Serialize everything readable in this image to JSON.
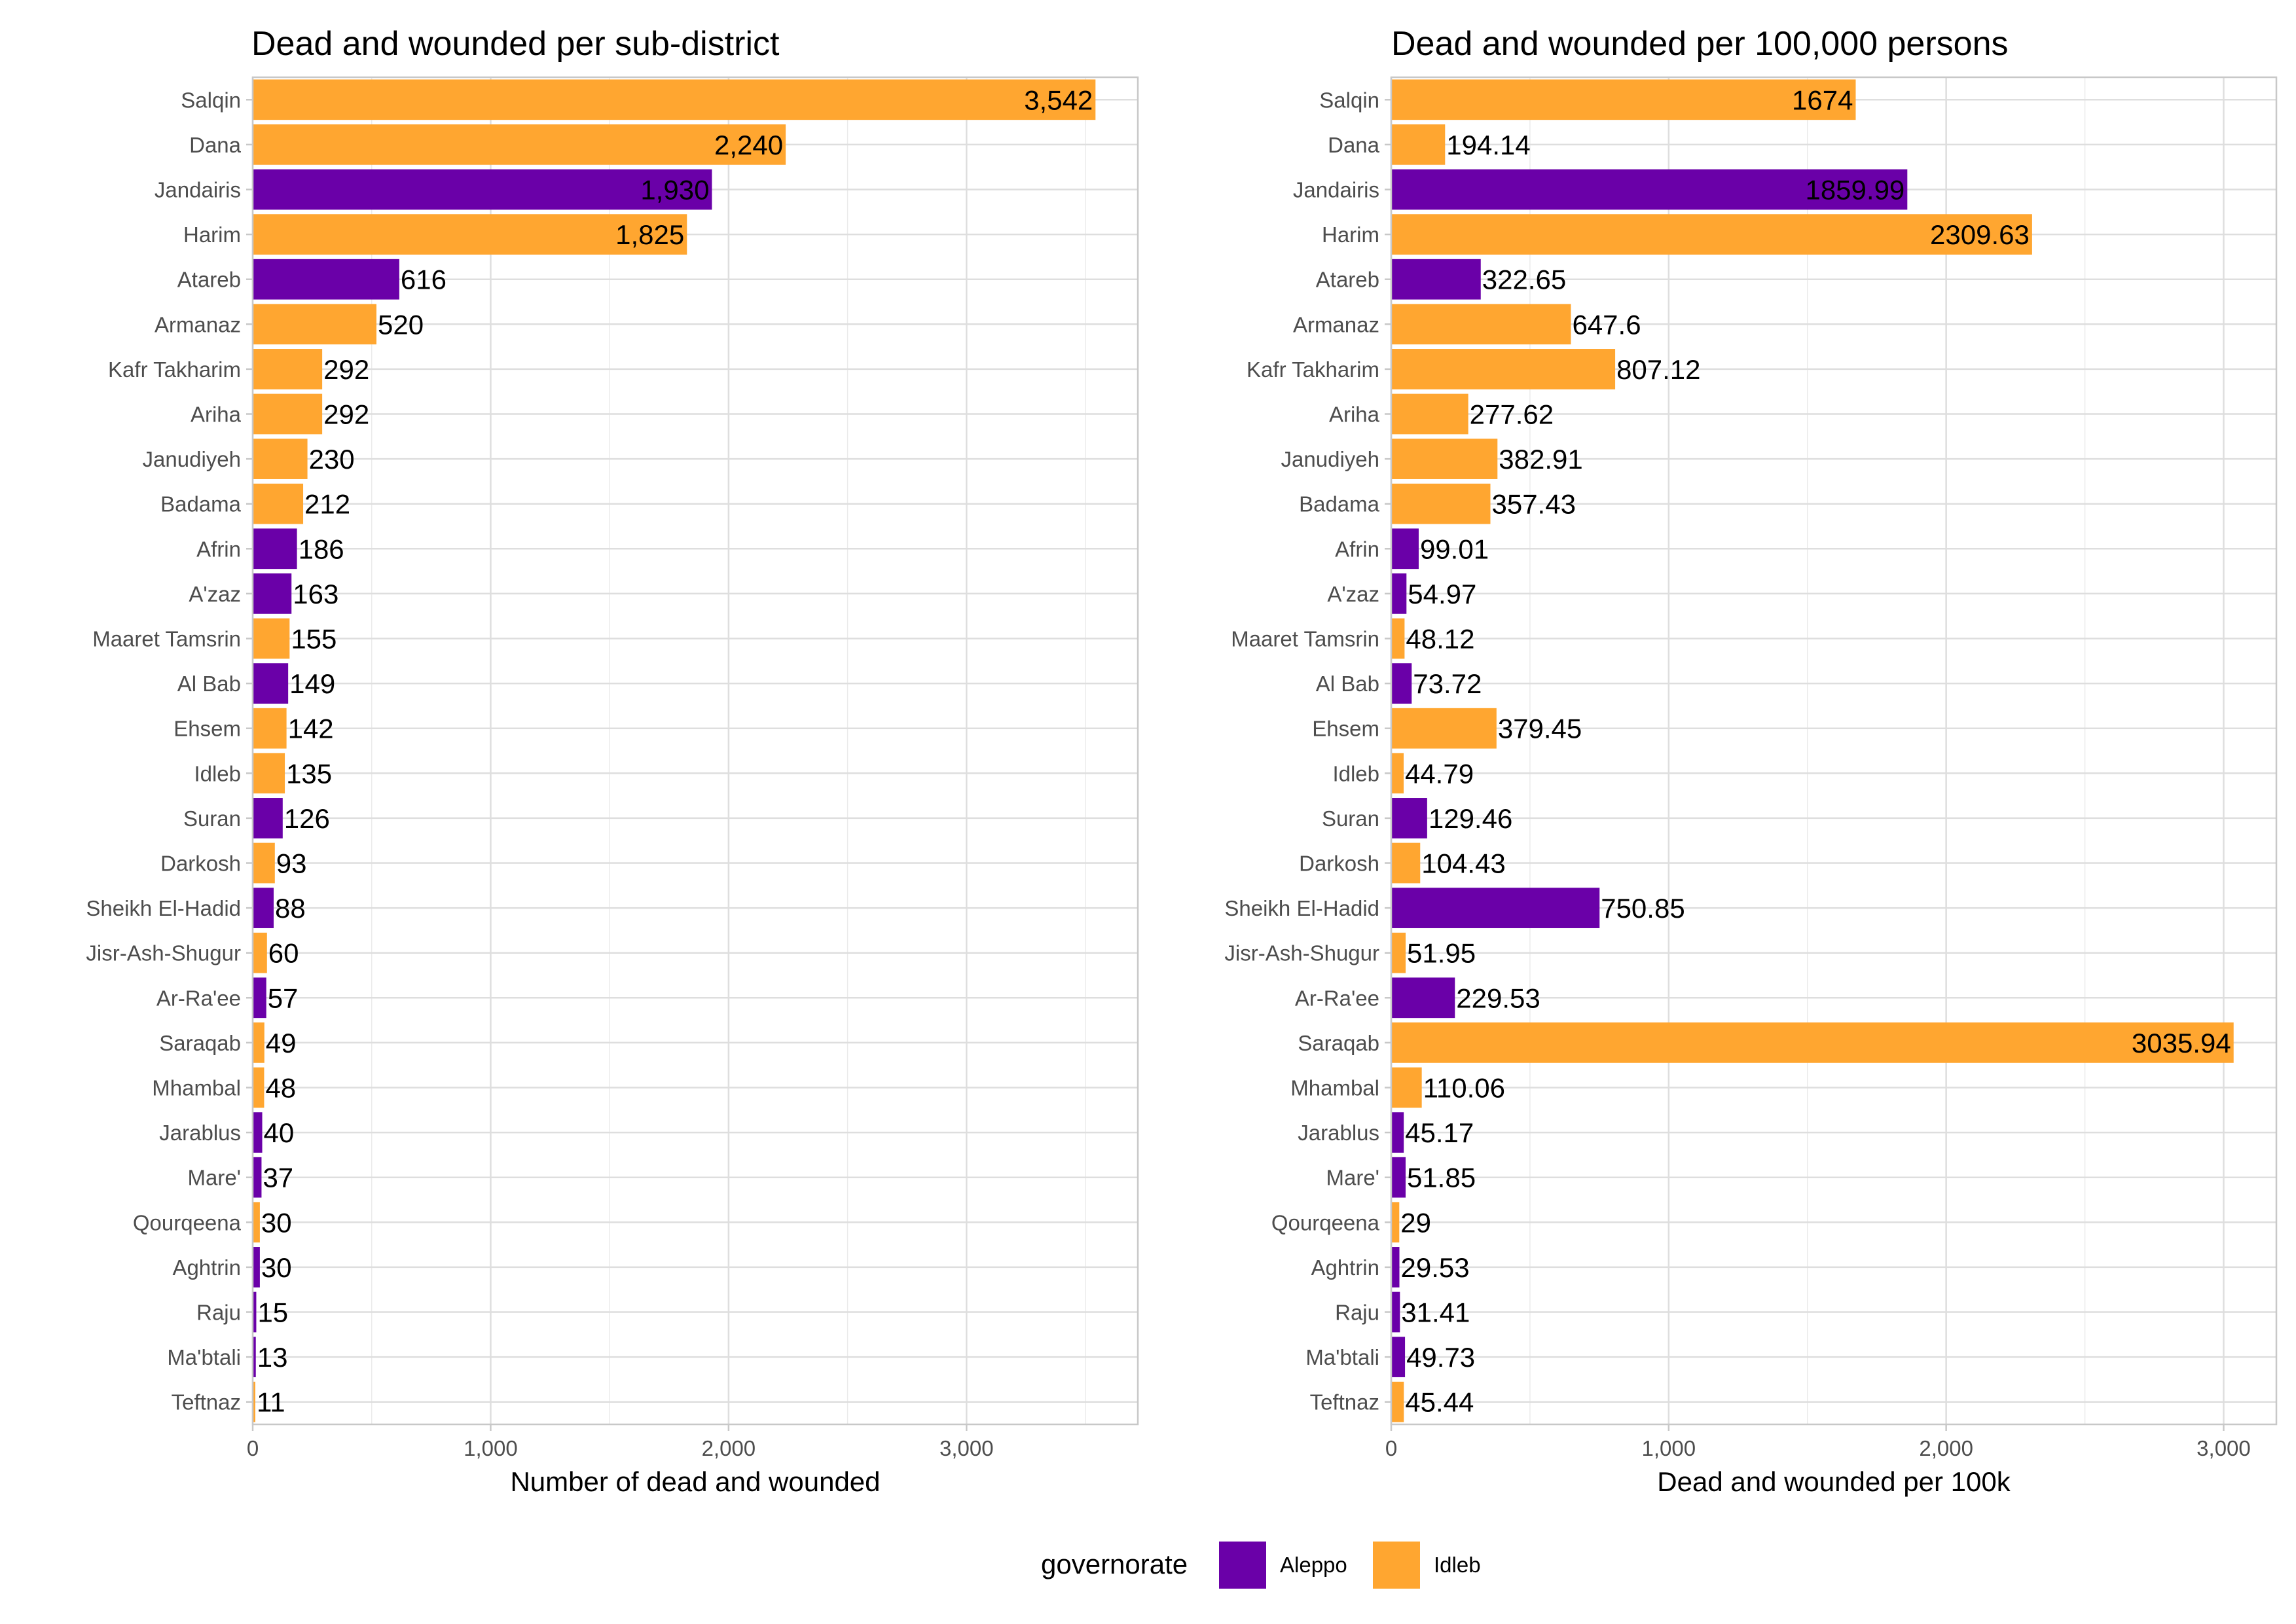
{
  "colors": {
    "Aleppo": "#6a00a8",
    "Idleb": "#ffa630"
  },
  "legend": {
    "title": "governorate",
    "items": [
      {
        "name": "Aleppo",
        "color": "#6a00a8"
      },
      {
        "name": "Idleb",
        "color": "#ffa630"
      }
    ]
  },
  "chart_data": [
    {
      "type": "bar",
      "orientation": "horizontal",
      "title": "Dead and wounded per sub-district",
      "xlabel": "Number of dead and wounded",
      "ylabel": "",
      "xlim": [
        0,
        3720
      ],
      "x_ticks": [
        0,
        1000,
        2000,
        3000
      ],
      "x_tick_labels": [
        "0",
        "1,000",
        "2,000",
        "3,000"
      ],
      "grid": true,
      "categories": [
        "Salqin",
        "Dana",
        "Jandairis",
        "Harim",
        "Atareb",
        "Armanaz",
        "Kafr Takharim",
        "Ariha",
        "Janudiyeh",
        "Badama",
        "Afrin",
        "A'zaz",
        "Maaret Tamsrin",
        "Al Bab",
        "Ehsem",
        "Idleb",
        "Suran",
        "Darkosh",
        "Sheikh El-Hadid",
        "Jisr-Ash-Shugur",
        "Ar-Ra'ee",
        "Saraqab",
        "Mhambal",
        "Jarablus",
        "Mare'",
        "Qourqeena",
        "Aghtrin",
        "Raju",
        "Ma'btali",
        "Teftnaz"
      ],
      "governorate": [
        "Idleb",
        "Idleb",
        "Aleppo",
        "Idleb",
        "Aleppo",
        "Idleb",
        "Idleb",
        "Idleb",
        "Idleb",
        "Idleb",
        "Aleppo",
        "Aleppo",
        "Idleb",
        "Aleppo",
        "Idleb",
        "Idleb",
        "Aleppo",
        "Idleb",
        "Aleppo",
        "Idleb",
        "Aleppo",
        "Idleb",
        "Idleb",
        "Aleppo",
        "Aleppo",
        "Idleb",
        "Aleppo",
        "Aleppo",
        "Aleppo",
        "Idleb"
      ],
      "values": [
        3542,
        2240,
        1930,
        1825,
        616,
        520,
        292,
        292,
        230,
        212,
        186,
        163,
        155,
        149,
        142,
        135,
        126,
        93,
        88,
        60,
        57,
        49,
        48,
        40,
        37,
        30,
        30,
        15,
        13,
        11
      ],
      "value_labels": [
        "3,542",
        "2,240",
        "1,930",
        "1,825",
        "616",
        "520",
        "292",
        "292",
        "230",
        "212",
        "186",
        "163",
        "155",
        "149",
        "142",
        "135",
        "126",
        "93",
        "88",
        "60",
        "57",
        "49",
        "48",
        "40",
        "37",
        "30",
        "30",
        "15",
        "13",
        "11"
      ],
      "label_inside": [
        true,
        true,
        true,
        true,
        false,
        false,
        false,
        false,
        false,
        false,
        false,
        false,
        false,
        false,
        false,
        false,
        false,
        false,
        false,
        false,
        false,
        false,
        false,
        false,
        false,
        false,
        false,
        false,
        false,
        false
      ]
    },
    {
      "type": "bar",
      "orientation": "horizontal",
      "title": "Dead and wounded per 100,000 persons",
      "xlabel": "Dead and wounded per 100k",
      "ylabel": "",
      "xlim": [
        0,
        3190
      ],
      "x_ticks": [
        0,
        1000,
        2000,
        3000
      ],
      "x_tick_labels": [
        "0",
        "1,000",
        "2,000",
        "3,000"
      ],
      "grid": true,
      "categories": [
        "Salqin",
        "Dana",
        "Jandairis",
        "Harim",
        "Atareb",
        "Armanaz",
        "Kafr Takharim",
        "Ariha",
        "Janudiyeh",
        "Badama",
        "Afrin",
        "A'zaz",
        "Maaret Tamsrin",
        "Al Bab",
        "Ehsem",
        "Idleb",
        "Suran",
        "Darkosh",
        "Sheikh El-Hadid",
        "Jisr-Ash-Shugur",
        "Ar-Ra'ee",
        "Saraqab",
        "Mhambal",
        "Jarablus",
        "Mare'",
        "Qourqeena",
        "Aghtrin",
        "Raju",
        "Ma'btali",
        "Teftnaz"
      ],
      "governorate": [
        "Idleb",
        "Idleb",
        "Aleppo",
        "Idleb",
        "Aleppo",
        "Idleb",
        "Idleb",
        "Idleb",
        "Idleb",
        "Idleb",
        "Aleppo",
        "Aleppo",
        "Idleb",
        "Aleppo",
        "Idleb",
        "Idleb",
        "Aleppo",
        "Idleb",
        "Aleppo",
        "Idleb",
        "Aleppo",
        "Idleb",
        "Idleb",
        "Aleppo",
        "Aleppo",
        "Idleb",
        "Aleppo",
        "Aleppo",
        "Aleppo",
        "Idleb"
      ],
      "values": [
        1674,
        194.14,
        1859.99,
        2309.63,
        322.65,
        647.6,
        807.12,
        277.62,
        382.91,
        357.43,
        99.01,
        54.97,
        48.12,
        73.72,
        379.45,
        44.79,
        129.46,
        104.43,
        750.85,
        51.95,
        229.53,
        3035.94,
        110.06,
        45.17,
        51.85,
        29,
        29.53,
        31.41,
        49.73,
        45.44
      ],
      "value_labels": [
        "1674",
        "194.14",
        "1859.99",
        "2309.63",
        "322.65",
        "647.6",
        "807.12",
        "277.62",
        "382.91",
        "357.43",
        "99.01",
        "54.97",
        "48.12",
        "73.72",
        "379.45",
        "44.79",
        "129.46",
        "104.43",
        "750.85",
        "51.95",
        "229.53",
        "3035.94",
        "110.06",
        "45.17",
        "51.85",
        "29",
        "29.53",
        "31.41",
        "49.73",
        "45.44"
      ],
      "label_inside": [
        true,
        false,
        true,
        true,
        false,
        false,
        false,
        false,
        false,
        false,
        false,
        false,
        false,
        false,
        false,
        false,
        false,
        false,
        false,
        false,
        false,
        true,
        false,
        false,
        false,
        false,
        false,
        false,
        false,
        false
      ]
    }
  ]
}
